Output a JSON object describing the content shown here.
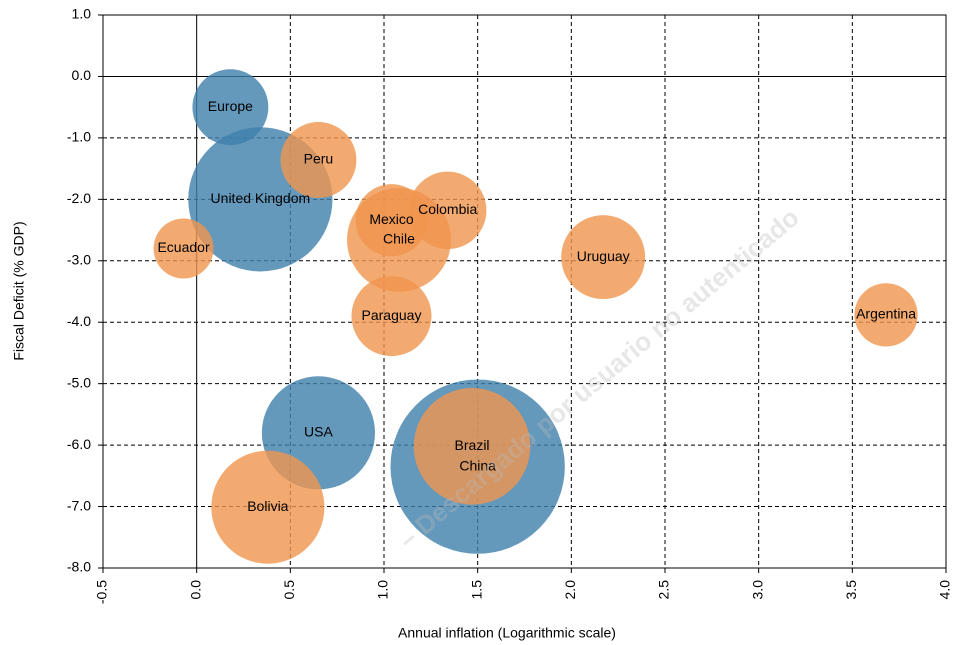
{
  "chart_data": {
    "type": "bubble",
    "xlabel": "Annual inflation (Logarithmic scale)",
    "ylabel": "Fiscal Deficit (% GDP)",
    "annotation": "– Descargado por usuario no autenticado",
    "xlim": [
      -0.5,
      4.0
    ],
    "ylim": [
      -8.0,
      1.0
    ],
    "xticks": [
      -0.5,
      {
        "value": 0,
        "label": "0.0"
      },
      0.5,
      {
        "value": 1,
        "label": "1.0"
      },
      1.5,
      {
        "value": 2,
        "label": "2.0"
      },
      2.5,
      {
        "value": 3,
        "label": "3.0"
      },
      3.5,
      {
        "value": 4,
        "label": "4.0"
      }
    ],
    "yticks": [
      {
        "value": 1,
        "label": "1.0"
      },
      {
        "value": 0,
        "label": "0.0"
      },
      {
        "value": -1,
        "label": "-1.0"
      },
      {
        "value": -2,
        "label": "-2.0"
      },
      {
        "value": -3,
        "label": "-3.0"
      },
      {
        "value": -4,
        "label": "-4.0"
      },
      {
        "value": -5,
        "label": "-5.0"
      },
      {
        "value": -6,
        "label": "-6.0"
      },
      {
        "value": -7,
        "label": "-7.0"
      },
      {
        "value": -8,
        "label": "-8.0"
      }
    ],
    "grid": true,
    "series": [
      {
        "color": "#3f7fab",
        "labels": [
          "Europe",
          "United Kingdom",
          "USA",
          "China"
        ],
        "x": [
          0.18,
          0.34,
          0.65,
          1.5
        ],
        "values": [
          -0.5,
          -2.0,
          -5.8,
          -6.35
        ],
        "sizes": [
          14.4,
          52,
          32,
          76
        ]
      },
      {
        "color": "#f0954d",
        "labels": [
          "Peru",
          "Ecuador",
          "Mexico",
          "Colombia",
          "Chile",
          "Paraguay",
          "Uruguay",
          "Argentina",
          "Bolivia",
          "Brazil"
        ],
        "x": [
          0.65,
          -0.07,
          1.04,
          1.34,
          1.08,
          1.04,
          2.17,
          3.68,
          0.38,
          1.47
        ],
        "values": [
          -1.36,
          -2.8,
          -2.34,
          -2.18,
          -2.66,
          -3.9,
          -2.94,
          -3.88,
          -7.01,
          -6.02
        ],
        "sizes": [
          14.4,
          9,
          13,
          15,
          27,
          16,
          17.6,
          10,
          32,
          34
        ]
      }
    ]
  }
}
